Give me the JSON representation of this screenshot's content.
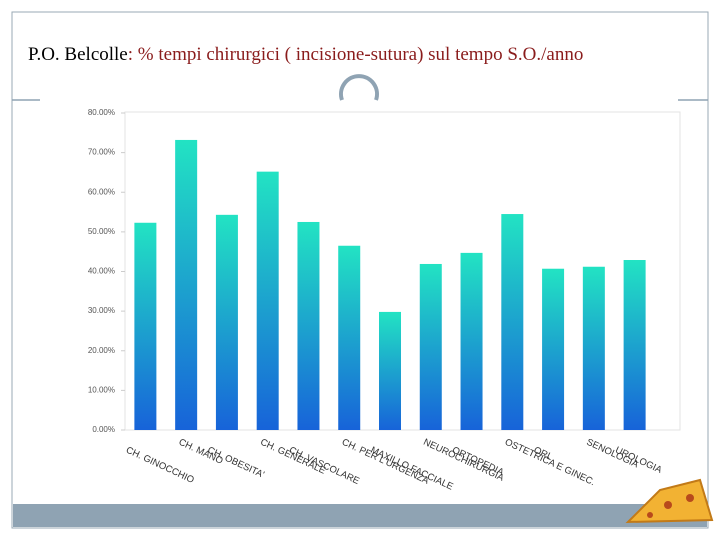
{
  "chart_data": {
    "type": "bar",
    "title": "P.O. Belcolle",
    "subtitle": ": % tempi chirurgici ( incisione-sutura)  sul tempo S.O./anno",
    "categories": [
      "CH. GINOCCHIO",
      "CH. MANO",
      "CH. OBESITA'",
      "CH. GENERALE",
      "CH. VASCOLARE",
      "CH. PER L'URGENZA",
      "MAXILLO FACCIALE",
      "NEUROCHIRURGIA",
      "ORTOPEDIA",
      "OSTETRICA E GINEC.",
      "ORL",
      "SENOLOGIA",
      "UROLOGIA"
    ],
    "values": [
      52.3,
      73.2,
      54.3,
      65.2,
      52.5,
      46.5,
      29.8,
      41.9,
      44.7,
      54.5,
      40.7,
      41.2,
      42.9
    ],
    "color": [
      "#1763d9",
      "#22e3c3"
    ],
    "ylim": [
      0,
      80
    ],
    "yticks": [
      {
        "value": 0,
        "label": "0.00%"
      },
      {
        "value": 10,
        "label": "10.00%"
      },
      {
        "value": 20,
        "label": "20.00%"
      },
      {
        "value": 30,
        "label": "30.00%"
      },
      {
        "value": 40,
        "label": "40.00%"
      },
      {
        "value": 50,
        "label": "50.00%"
      },
      {
        "value": 60,
        "label": "60.00%"
      },
      {
        "value": 70,
        "label": "70.00%"
      },
      {
        "value": 80,
        "label": "80.00%"
      }
    ],
    "grid": false
  }
}
